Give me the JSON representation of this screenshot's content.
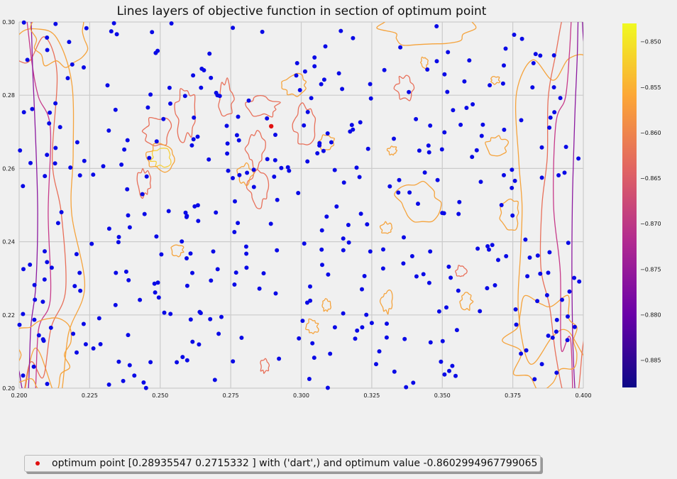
{
  "chart_data": {
    "type": "scatter",
    "title": "Lines layers of objective function in section of optimum point",
    "xlim": [
      0.2,
      0.4
    ],
    "ylim": [
      0.2,
      0.3
    ],
    "x_ticks": [
      "0.200",
      "0.225",
      "0.250",
      "0.275",
      "0.300",
      "0.325",
      "0.350",
      "0.375",
      "0.400"
    ],
    "y_ticks": [
      "0.20",
      "0.22",
      "0.24",
      "0.26",
      "0.28",
      "0.30"
    ],
    "grid": true,
    "colorbar": {
      "colormap": "plasma",
      "range": [
        -0.888,
        -0.848
      ],
      "ticks": [
        "−0.850",
        "−0.855",
        "−0.860",
        "−0.865",
        "−0.870",
        "−0.875",
        "−0.880",
        "−0.885"
      ]
    },
    "optimum": {
      "x": 0.28935547,
      "y": 0.2715332,
      "color": "#e01010",
      "label": "optimum point [0.28935547 0.2715332 ] with ('dart',) and optimum value -0.8602994967799065"
    },
    "sample_points": {
      "color": "#0a0ae6",
      "count": 400,
      "seed": 7
    },
    "legend_placement": "below plot, left"
  }
}
